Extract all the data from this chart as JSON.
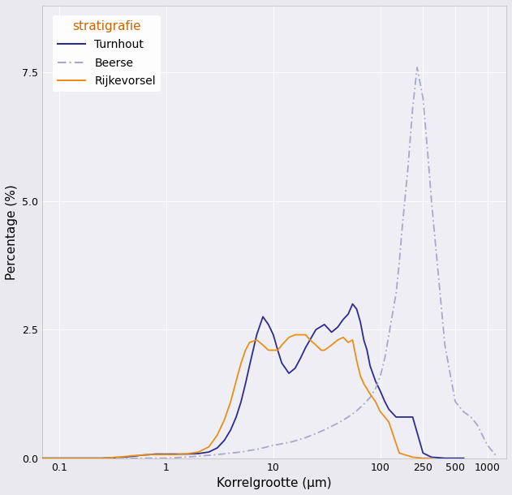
{
  "xlabel": "Korrelgrootte (μm)",
  "ylabel": "Percentage (%)",
  "legend_title": "stratigrafie",
  "legend_entries": [
    "Turnhout",
    "Beerse",
    "Rijkevorsel"
  ],
  "colors": {
    "Turnhout": "#2D2B8F",
    "Beerse": "#A8A8CC",
    "Rijkevorsel": "#E8901A"
  },
  "background_color": "#EEEEF4",
  "grid_color": "#FFFFFF",
  "ylim": [
    0.0,
    8.8
  ],
  "yticks": [
    0.0,
    2.5,
    5.0,
    7.5
  ],
  "xlim_log": [
    0.07,
    1500
  ],
  "xtick_values": [
    0.1,
    1,
    10,
    100,
    250,
    500,
    1000
  ],
  "xtick_labels": [
    "0.1",
    "1",
    "10",
    "100",
    "250",
    "500",
    "1000"
  ],
  "turnhout_x": [
    0.07,
    0.09,
    0.11,
    0.13,
    0.16,
    0.2,
    0.25,
    0.3,
    0.35,
    0.4,
    0.5,
    0.6,
    0.7,
    0.8,
    0.9,
    1.0,
    1.2,
    1.5,
    2.0,
    2.5,
    3.0,
    3.5,
    4.0,
    4.5,
    5.0,
    5.5,
    6.0,
    7.0,
    8.0,
    9.0,
    10.0,
    11.0,
    12.0,
    14.0,
    16.0,
    18.0,
    20.0,
    25.0,
    30.0,
    35.0,
    40.0,
    45.0,
    50.0,
    55.0,
    60.0,
    65.0,
    70.0,
    75.0,
    80.0,
    90.0,
    100.0,
    110.0,
    120.0,
    140.0,
    160.0,
    200.0,
    250.0,
    300.0,
    400.0,
    600.0
  ],
  "turnhout_y": [
    0.0,
    0.0,
    0.0,
    0.0,
    0.0,
    0.0,
    0.0,
    0.01,
    0.01,
    0.02,
    0.04,
    0.06,
    0.07,
    0.08,
    0.08,
    0.08,
    0.08,
    0.08,
    0.09,
    0.12,
    0.2,
    0.35,
    0.55,
    0.8,
    1.1,
    1.45,
    1.8,
    2.4,
    2.75,
    2.6,
    2.4,
    2.1,
    1.85,
    1.65,
    1.75,
    1.95,
    2.15,
    2.5,
    2.6,
    2.45,
    2.55,
    2.7,
    2.8,
    3.0,
    2.9,
    2.65,
    2.3,
    2.1,
    1.8,
    1.5,
    1.3,
    1.1,
    0.95,
    0.8,
    0.8,
    0.8,
    0.1,
    0.02,
    0.0,
    0.0
  ],
  "beerse_x": [
    0.07,
    0.09,
    0.12,
    0.15,
    0.2,
    0.3,
    0.4,
    0.5,
    0.7,
    1.0,
    1.5,
    2.0,
    3.0,
    4.0,
    5.0,
    6.0,
    7.0,
    8.0,
    10.0,
    12.0,
    15.0,
    20.0,
    25.0,
    30.0,
    40.0,
    50.0,
    60.0,
    70.0,
    80.0,
    90.0,
    100.0,
    110.0,
    120.0,
    140.0,
    150.0,
    160.0,
    180.0,
    200.0,
    220.0,
    250.0,
    280.0,
    300.0,
    350.0,
    400.0,
    500.0,
    600.0,
    700.0,
    800.0,
    1000.0,
    1200.0
  ],
  "beerse_y": [
    0.0,
    0.0,
    0.0,
    0.0,
    0.0,
    0.0,
    0.0,
    0.0,
    0.0,
    0.0,
    0.02,
    0.04,
    0.07,
    0.1,
    0.12,
    0.15,
    0.17,
    0.2,
    0.25,
    0.28,
    0.32,
    0.4,
    0.48,
    0.55,
    0.68,
    0.8,
    0.92,
    1.05,
    1.18,
    1.35,
    1.6,
    1.95,
    2.4,
    3.2,
    3.8,
    4.5,
    5.6,
    6.8,
    7.6,
    7.0,
    5.8,
    5.0,
    3.5,
    2.2,
    1.1,
    0.9,
    0.8,
    0.65,
    0.25,
    0.05
  ],
  "rijkevorsel_x": [
    0.07,
    0.09,
    0.12,
    0.15,
    0.2,
    0.25,
    0.3,
    0.4,
    0.5,
    0.6,
    0.7,
    0.8,
    0.9,
    1.0,
    1.2,
    1.5,
    2.0,
    2.5,
    3.0,
    3.5,
    4.0,
    4.5,
    5.0,
    5.5,
    6.0,
    7.0,
    8.0,
    9.0,
    10.0,
    11.0,
    12.0,
    14.0,
    16.0,
    18.0,
    20.0,
    22.0,
    25.0,
    28.0,
    30.0,
    35.0,
    40.0,
    45.0,
    50.0,
    55.0,
    60.0,
    65.0,
    70.0,
    80.0,
    90.0,
    100.0,
    110.0,
    120.0,
    150.0,
    200.0,
    250.0,
    300.0
  ],
  "rijkevorsel_y": [
    0.0,
    0.0,
    0.0,
    0.0,
    0.0,
    0.0,
    0.01,
    0.03,
    0.05,
    0.06,
    0.07,
    0.07,
    0.07,
    0.07,
    0.07,
    0.08,
    0.12,
    0.22,
    0.45,
    0.75,
    1.1,
    1.5,
    1.85,
    2.1,
    2.25,
    2.3,
    2.2,
    2.1,
    2.1,
    2.1,
    2.2,
    2.35,
    2.4,
    2.4,
    2.4,
    2.3,
    2.2,
    2.1,
    2.1,
    2.2,
    2.3,
    2.35,
    2.25,
    2.3,
    1.9,
    1.6,
    1.45,
    1.25,
    1.1,
    0.9,
    0.8,
    0.7,
    0.1,
    0.02,
    0.0,
    0.0
  ]
}
